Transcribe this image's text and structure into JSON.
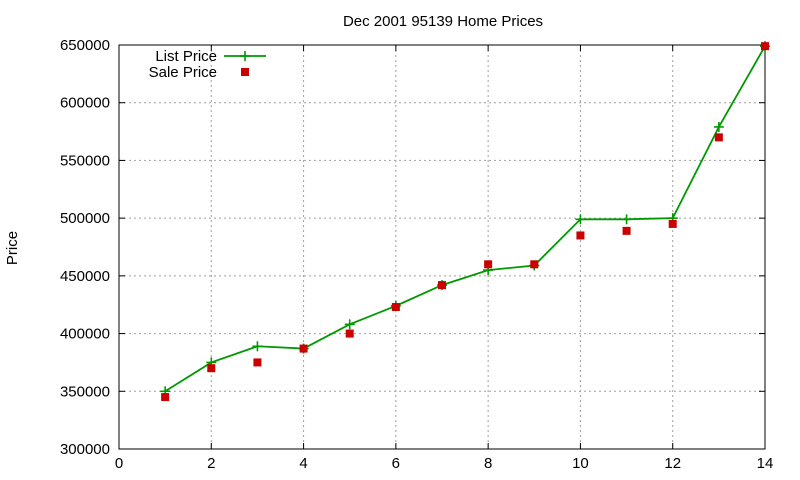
{
  "chart_data": {
    "type": "line",
    "title": "Dec 2001 95139 Home Prices",
    "xlabel": "",
    "ylabel": "Price",
    "xlim": [
      0,
      14
    ],
    "ylim": [
      300000,
      650000
    ],
    "x_ticks": [
      0,
      2,
      4,
      6,
      8,
      10,
      12,
      14
    ],
    "y_ticks": [
      300000,
      350000,
      400000,
      450000,
      500000,
      550000,
      600000,
      650000
    ],
    "grid": true,
    "legend_position": "top-left",
    "series": [
      {
        "name": "List Price",
        "style": "lines-and-plus-markers",
        "color": "#009900",
        "x": [
          1,
          2,
          3,
          4,
          5,
          6,
          7,
          8,
          9,
          10,
          11,
          12,
          13,
          14
        ],
        "y": [
          350000,
          375000,
          389000,
          387000,
          408000,
          424000,
          442000,
          455000,
          459000,
          499000,
          499000,
          500000,
          579000,
          649000
        ]
      },
      {
        "name": "Sale Price",
        "style": "square-markers",
        "color": "#cc0000",
        "x": [
          1,
          2,
          3,
          4,
          5,
          6,
          7,
          8,
          9,
          10,
          11,
          12,
          13,
          14
        ],
        "y": [
          345000,
          370000,
          375000,
          387000,
          400000,
          423000,
          442000,
          460000,
          460000,
          485000,
          489000,
          495000,
          570000,
          649000
        ]
      }
    ]
  }
}
